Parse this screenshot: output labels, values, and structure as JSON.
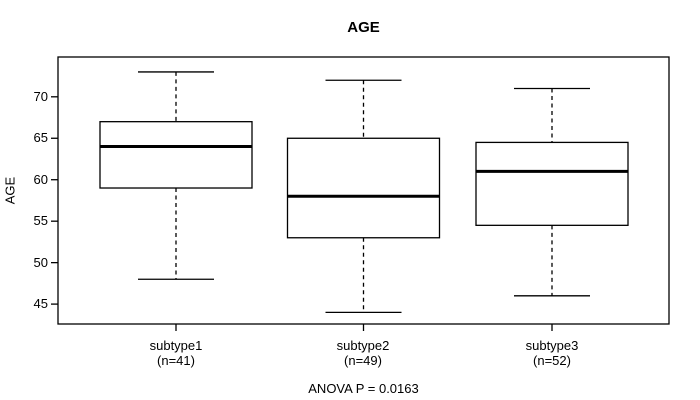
{
  "title": "AGE",
  "y_axis": {
    "label": "AGE",
    "ticks": [
      45,
      50,
      55,
      60,
      65,
      70
    ]
  },
  "x_axis": {
    "categories": [
      {
        "label": "subtype1",
        "sublabel": "(n=41)"
      },
      {
        "label": "subtype2",
        "sublabel": "(n=49)"
      },
      {
        "label": "subtype3",
        "sublabel": "(n=52)"
      }
    ]
  },
  "footer": {
    "annotation": "ANOVA P = 0.0163"
  },
  "chart_data": {
    "type": "boxplot",
    "title": "AGE",
    "ylabel": "AGE",
    "xlabel": "",
    "ylim": [
      42.6,
      74.8
    ],
    "y_ticks": [
      45,
      50,
      55,
      60,
      65,
      70
    ],
    "grid": false,
    "legend": false,
    "categories": [
      "subtype1",
      "subtype2",
      "subtype3"
    ],
    "series": [
      {
        "name": "subtype1",
        "n": 41,
        "whisker_low": 48,
        "q1": 59,
        "median": 64,
        "q3": 67,
        "whisker_high": 73
      },
      {
        "name": "subtype2",
        "n": 49,
        "whisker_low": 44,
        "q1": 53,
        "median": 58,
        "q3": 65,
        "whisker_high": 72
      },
      {
        "name": "subtype3",
        "n": 52,
        "whisker_low": 46,
        "q1": 54.5,
        "median": 61,
        "q3": 64.5,
        "whisker_high": 71
      }
    ],
    "annotation": "ANOVA P = 0.0163",
    "line_color": "#000000",
    "box_fill": "#ffffff"
  }
}
